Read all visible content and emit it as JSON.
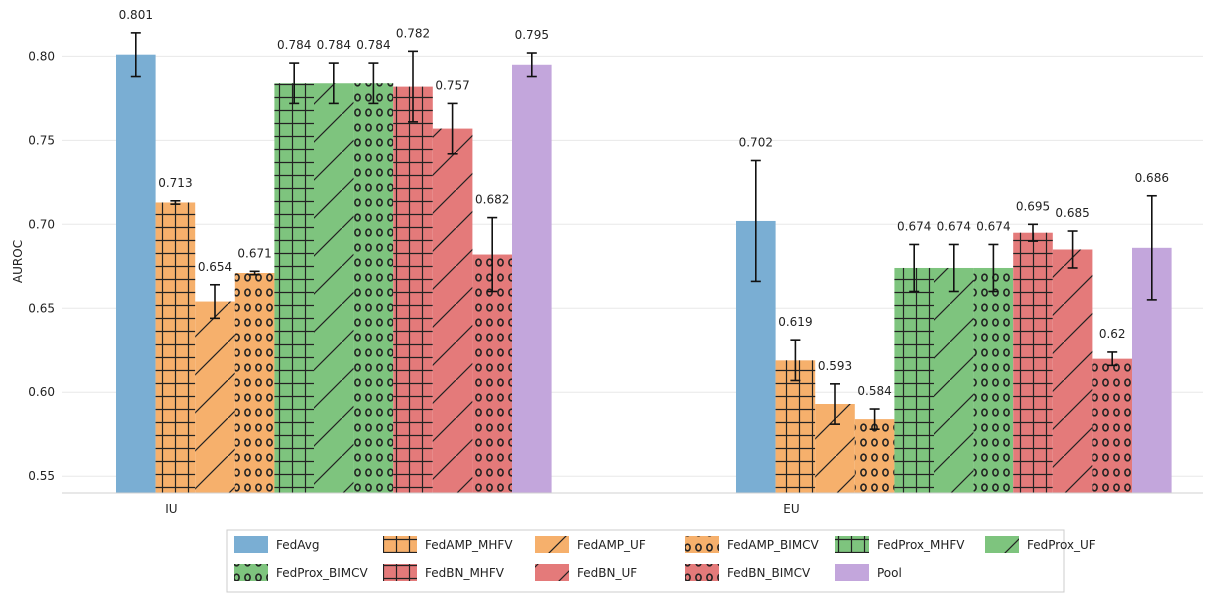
{
  "chart_data": {
    "type": "bar",
    "ylabel": "AUROC",
    "xlabel": "",
    "ylim": [
      0.54,
      0.83
    ],
    "yticks": [
      0.55,
      0.6,
      0.65,
      0.7,
      0.75,
      0.8
    ],
    "ytick_labels": [
      "0.55",
      "0.60",
      "0.65",
      "0.70",
      "0.75",
      "0.80"
    ],
    "grid": "horizontal",
    "legend_position": "bottom",
    "categories": [
      "IU",
      "EU"
    ],
    "series": [
      {
        "name": "FedAvg",
        "color": "#7aaed3",
        "hatch": "none",
        "values": [
          0.801,
          0.702
        ],
        "labels": [
          "0.801",
          "0.702"
        ],
        "err": [
          0.013,
          0.036
        ]
      },
      {
        "name": "FedAMP_MHFV",
        "color": "#f6b06c",
        "hatch": "grid",
        "values": [
          0.713,
          0.619
        ],
        "labels": [
          "0.713",
          "0.619"
        ],
        "err": [
          0.001,
          0.012
        ]
      },
      {
        "name": "FedAMP_UF",
        "color": "#f6b06c",
        "hatch": "slash",
        "values": [
          0.654,
          0.593
        ],
        "labels": [
          "0.654",
          "0.593"
        ],
        "err": [
          0.01,
          0.012
        ]
      },
      {
        "name": "FedAMP_BIMCV",
        "color": "#f6b06c",
        "hatch": "circles",
        "values": [
          0.671,
          0.584
        ],
        "labels": [
          "0.671",
          "0.584"
        ],
        "err": [
          0.001,
          0.006
        ]
      },
      {
        "name": "FedProx_MHFV",
        "color": "#7ec47e",
        "hatch": "grid",
        "values": [
          0.784,
          0.674
        ],
        "labels": [
          "0.784",
          "0.674"
        ],
        "err": [
          0.012,
          0.014
        ]
      },
      {
        "name": "FedProx_UF",
        "color": "#7ec47e",
        "hatch": "slash",
        "values": [
          0.784,
          0.674
        ],
        "labels": [
          "0.784",
          "0.674"
        ],
        "err": [
          0.012,
          0.014
        ]
      },
      {
        "name": "FedProx_BIMCV",
        "color": "#7ec47e",
        "hatch": "circles",
        "values": [
          0.784,
          0.674
        ],
        "labels": [
          "0.784",
          "0.674"
        ],
        "err": [
          0.012,
          0.014
        ]
      },
      {
        "name": "FedBN_MHFV",
        "color": "#e47a7a",
        "hatch": "grid",
        "values": [
          0.782,
          0.695
        ],
        "labels": [
          "0.782",
          "0.695"
        ],
        "err": [
          0.021,
          0.005
        ]
      },
      {
        "name": "FedBN_UF",
        "color": "#e47a7a",
        "hatch": "slash",
        "values": [
          0.757,
          0.685
        ],
        "labels": [
          "0.757",
          "0.685"
        ],
        "err": [
          0.015,
          0.011
        ]
      },
      {
        "name": "FedBN_BIMCV",
        "color": "#e47a7a",
        "hatch": "circles",
        "values": [
          0.682,
          0.62
        ],
        "labels": [
          "0.682",
          "0.62"
        ],
        "err": [
          0.022,
          0.004
        ]
      },
      {
        "name": "Pool",
        "color": "#c3a6dc",
        "hatch": "none",
        "values": [
          0.795,
          0.686
        ],
        "labels": [
          "0.795",
          "0.686"
        ],
        "err": [
          0.007,
          0.031
        ]
      }
    ]
  }
}
